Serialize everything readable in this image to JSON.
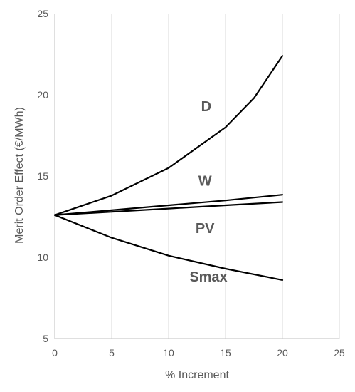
{
  "chart_data": {
    "type": "line",
    "xlabel": "% Increment",
    "ylabel": "Merit Order Effect (€/MWh)",
    "xlim": [
      0,
      25
    ],
    "ylim": [
      5,
      25
    ],
    "x_ticks": [
      0,
      5,
      10,
      15,
      20,
      25
    ],
    "y_ticks": [
      5,
      10,
      15,
      20,
      25
    ],
    "grid": "vertical",
    "line_color": "#000000",
    "series": [
      {
        "name": "D",
        "x": [
          0,
          5,
          10,
          15,
          17.5,
          20
        ],
        "y": [
          12.6,
          13.8,
          15.5,
          18.0,
          19.8,
          22.4
        ]
      },
      {
        "name": "W",
        "x": [
          0,
          5,
          10,
          15,
          20
        ],
        "y": [
          12.6,
          12.9,
          13.2,
          13.5,
          13.85
        ]
      },
      {
        "name": "PV",
        "x": [
          0,
          5,
          10,
          15,
          20
        ],
        "y": [
          12.6,
          12.8,
          13.0,
          13.2,
          13.4
        ]
      },
      {
        "name": "Smax",
        "x": [
          0,
          5,
          10,
          15,
          20
        ],
        "y": [
          12.6,
          11.2,
          10.1,
          9.3,
          8.6
        ]
      }
    ],
    "series_labels": [
      {
        "text": "D",
        "x": 13.3,
        "y": 19.0
      },
      {
        "text": "W",
        "x": 13.2,
        "y": 14.4
      },
      {
        "text": "PV",
        "x": 13.2,
        "y": 11.5
      },
      {
        "text": "Smax",
        "x": 13.5,
        "y": 8.5
      }
    ]
  }
}
